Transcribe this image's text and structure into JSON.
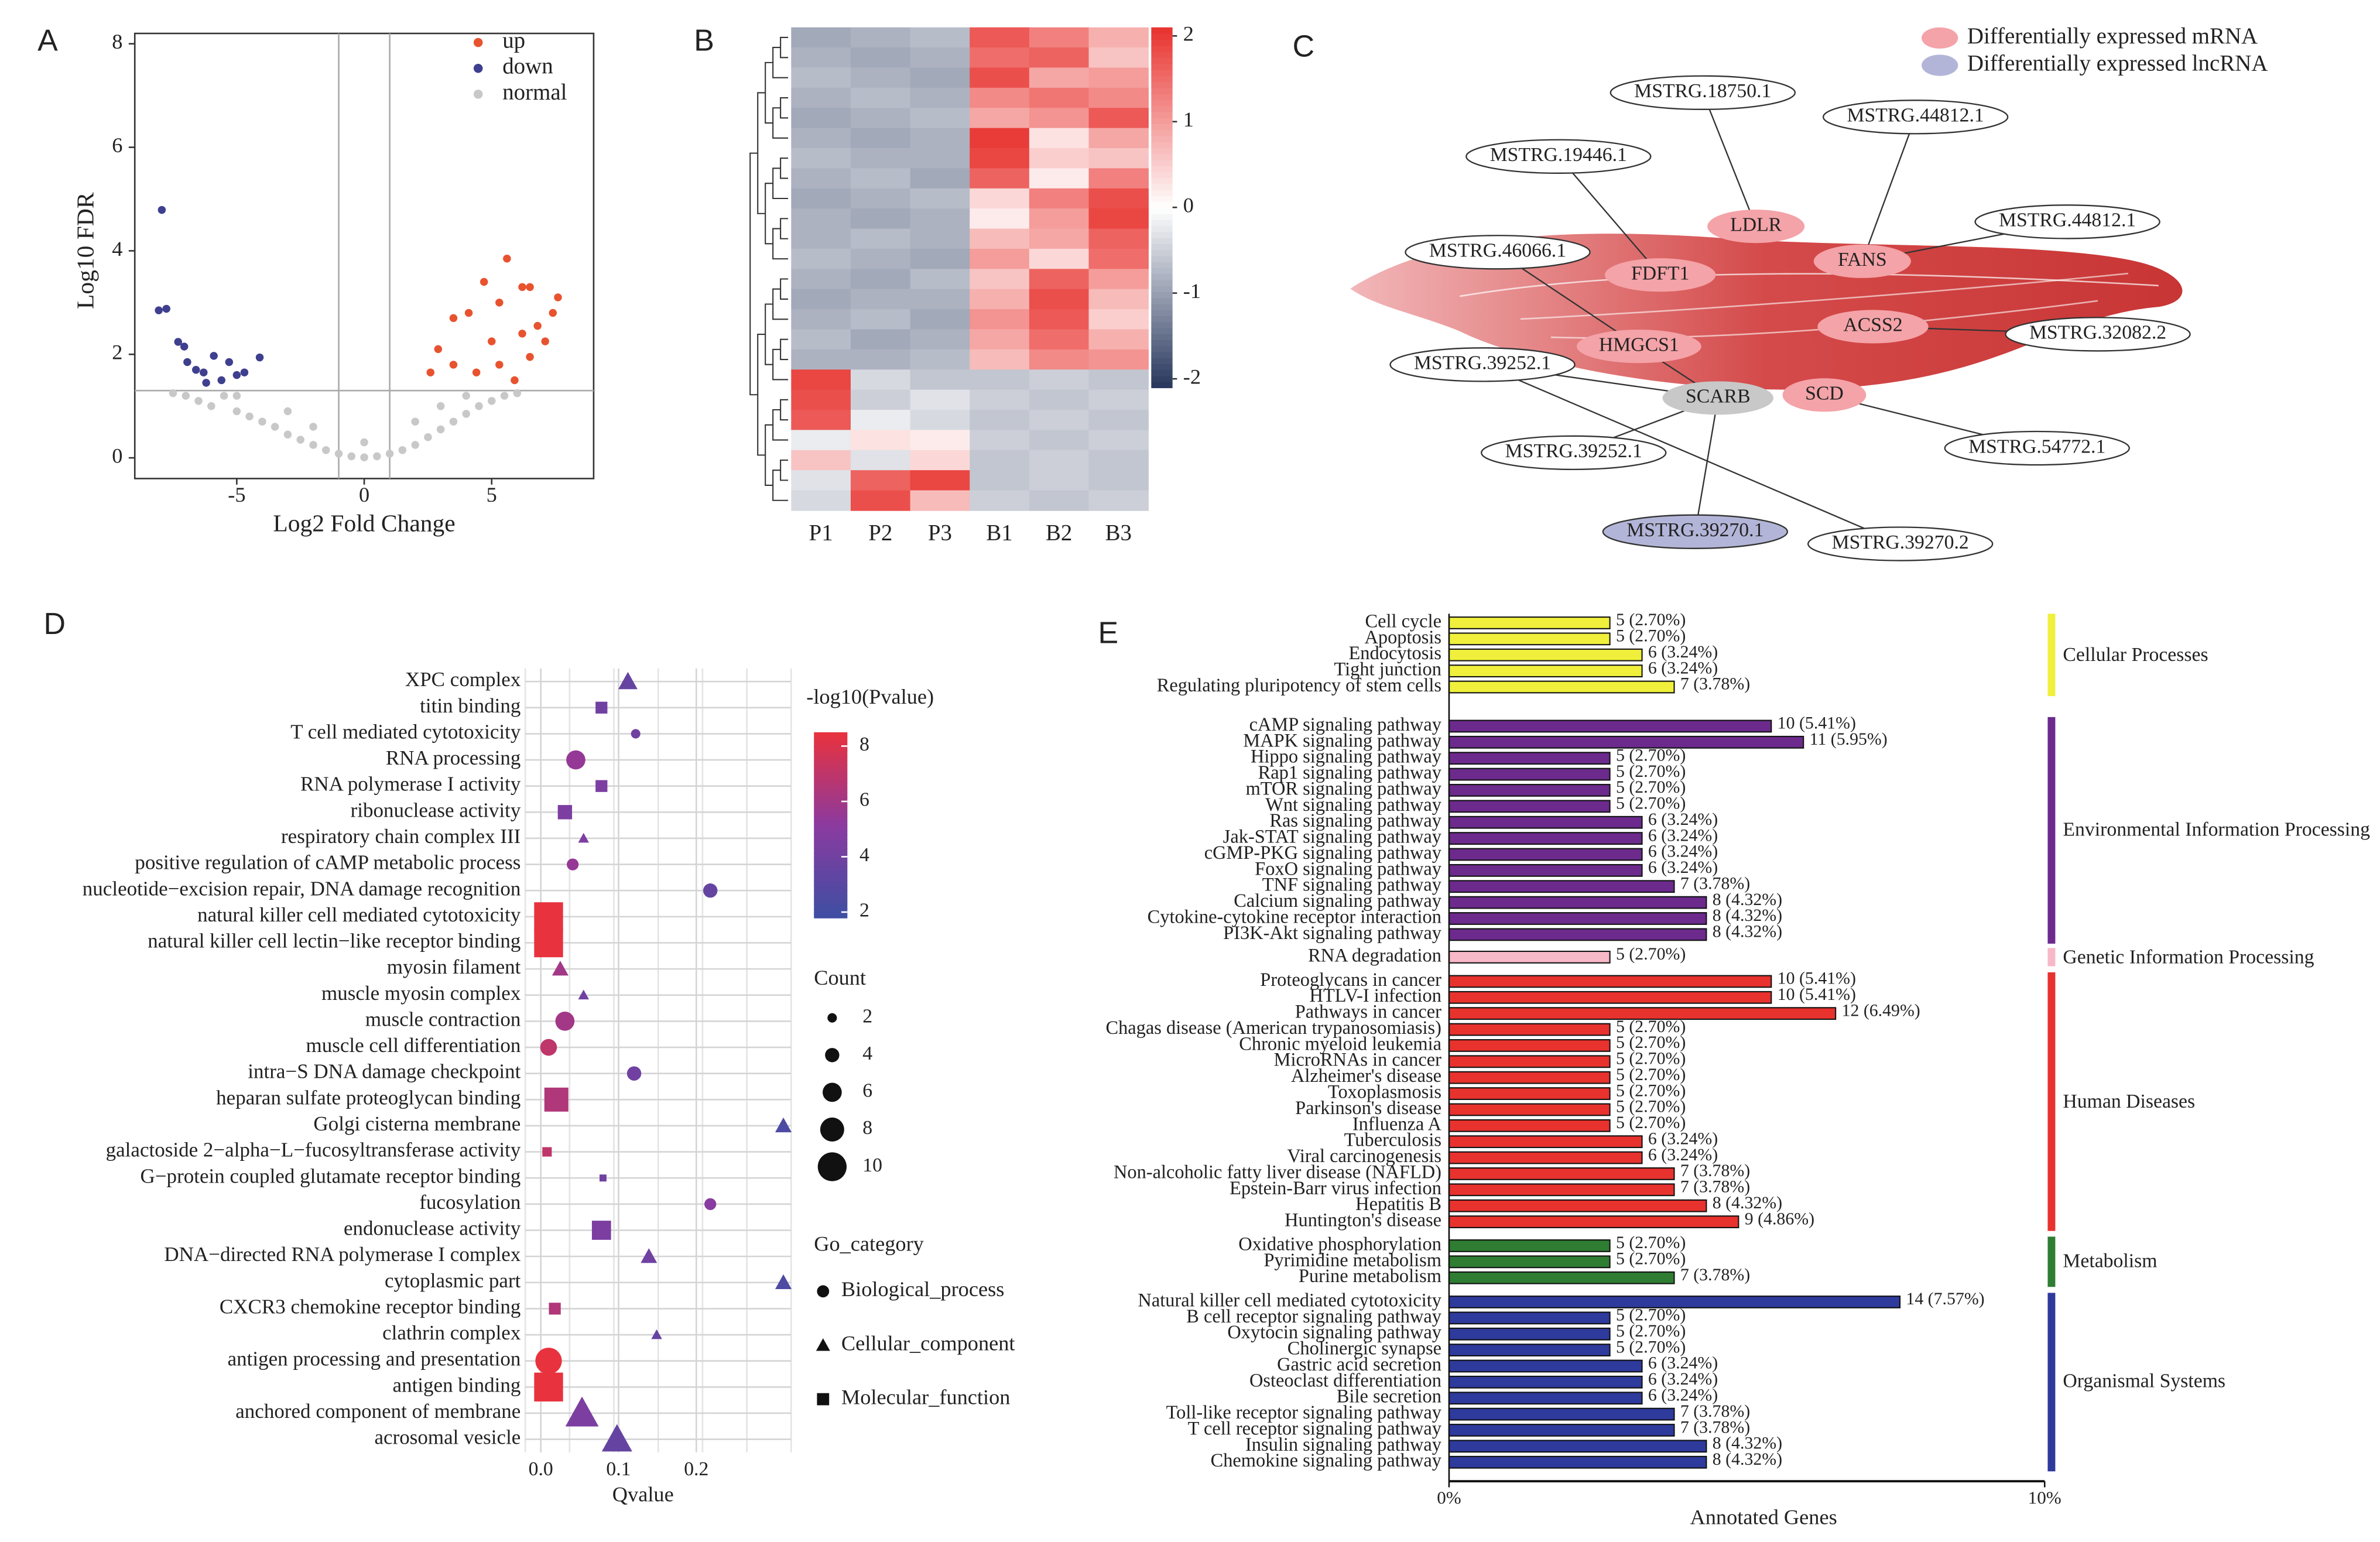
{
  "chart_data": [
    {
      "type": "scatter",
      "panel": "A",
      "xlabel": "Log2 Fold Change",
      "ylabel": "Log10 FDR",
      "xlim": [
        -9,
        9
      ],
      "ylim": [
        -0.4,
        8.2
      ],
      "xticks": [
        -5,
        0,
        5
      ],
      "yticks": [
        0,
        2,
        4,
        6,
        8
      ],
      "vlines": [
        -1,
        1
      ],
      "hlines": [
        1.3
      ],
      "series": [
        {
          "name": "up",
          "color": "#e8532f",
          "x": [
            5.6,
            4.7,
            6.2,
            6.5,
            7.6,
            7.4,
            6.8,
            3.5,
            4.1,
            2.9,
            3.5,
            4.4,
            5.3,
            5.9,
            6.5,
            7.1,
            2.6,
            5.0,
            6.2,
            5.3
          ],
          "values": [
            3.85,
            3.4,
            3.3,
            3.3,
            3.1,
            2.8,
            2.55,
            2.7,
            2.8,
            2.1,
            1.8,
            1.65,
            1.8,
            1.5,
            1.95,
            2.25,
            1.65,
            2.25,
            2.4,
            3.0
          ]
        },
        {
          "name": "down",
          "color": "#3f3f8f",
          "x": [
            -7.94,
            -8.06,
            -7.76,
            -7.3,
            -7.06,
            -6.94,
            -6.6,
            -6.3,
            -5.9,
            -5.3,
            -4.7,
            -4.1,
            -5.0,
            -6.2,
            -5.6
          ],
          "values": [
            4.79,
            2.85,
            2.88,
            2.24,
            2.15,
            1.85,
            1.7,
            1.65,
            1.97,
            1.85,
            1.65,
            1.94,
            1.6,
            1.45,
            1.5
          ]
        },
        {
          "name": "normal",
          "color": "#c8c8c8",
          "x": [
            -7.5,
            -7,
            -6.5,
            -6,
            -5.5,
            -5,
            -4.5,
            -4,
            -3.5,
            -3,
            -2.5,
            -2,
            -1.5,
            -1,
            -0.5,
            0,
            0.5,
            1,
            1.5,
            2,
            2.5,
            3,
            3.5,
            4,
            4.5,
            5,
            5.5,
            6,
            -3,
            3,
            -2,
            2,
            -5,
            4,
            0
          ],
          "values": [
            1.25,
            1.2,
            1.1,
            1.0,
            1.2,
            0.9,
            0.8,
            0.7,
            0.6,
            0.45,
            0.35,
            0.25,
            0.15,
            0.08,
            0.03,
            0.01,
            0.03,
            0.08,
            0.15,
            0.25,
            0.4,
            0.55,
            0.7,
            0.85,
            1.0,
            1.1,
            1.2,
            1.25,
            0.9,
            1.0,
            0.6,
            0.7,
            1.2,
            1.2,
            0.3
          ]
        }
      ]
    },
    {
      "type": "heatmap",
      "panel": "B",
      "columns": [
        "P1",
        "P2",
        "P3",
        "B1",
        "B2",
        "B3"
      ],
      "zlim": [
        -2.1,
        2.1
      ],
      "zticks": [
        -2,
        -1,
        0,
        1,
        2
      ],
      "low_color": "#27365c",
      "mid_color": "#ffffff",
      "high_color": "#e8322e",
      "values": [
        [
          -0.9,
          -0.8,
          -0.7,
          1.7,
          1.3,
          0.8
        ],
        [
          -0.8,
          -0.9,
          -0.8,
          1.5,
          1.6,
          0.6
        ],
        [
          -0.7,
          -0.8,
          -0.9,
          1.8,
          0.9,
          1.0
        ],
        [
          -0.8,
          -0.7,
          -0.8,
          1.2,
          1.4,
          1.2
        ],
        [
          -0.9,
          -0.8,
          -0.7,
          0.9,
          1.1,
          1.7
        ],
        [
          -0.8,
          -0.9,
          -0.8,
          2.0,
          0.3,
          0.9
        ],
        [
          -0.7,
          -0.8,
          -0.8,
          1.9,
          0.5,
          0.6
        ],
        [
          -0.8,
          -0.7,
          -0.9,
          1.6,
          0.2,
          1.3
        ],
        [
          -0.9,
          -0.8,
          -0.7,
          0.4,
          1.3,
          1.8
        ],
        [
          -0.8,
          -0.9,
          -0.8,
          0.2,
          1.0,
          1.9
        ],
        [
          -0.8,
          -0.7,
          -0.8,
          0.7,
          0.9,
          1.6
        ],
        [
          -0.7,
          -0.8,
          -0.9,
          1.0,
          0.4,
          1.5
        ],
        [
          -0.8,
          -0.9,
          -0.7,
          0.6,
          1.6,
          1.0
        ],
        [
          -0.9,
          -0.8,
          -0.8,
          0.8,
          1.8,
          0.7
        ],
        [
          -0.8,
          -0.7,
          -0.9,
          1.1,
          1.7,
          0.5
        ],
        [
          -0.7,
          -0.9,
          -0.8,
          0.9,
          1.5,
          0.8
        ],
        [
          -0.8,
          -0.8,
          -0.7,
          0.7,
          1.2,
          1.1
        ],
        [
          1.9,
          -0.4,
          -0.6,
          -0.6,
          -0.5,
          -0.6
        ],
        [
          1.8,
          -0.5,
          -0.3,
          -0.5,
          -0.6,
          -0.5
        ],
        [
          1.7,
          -0.2,
          -0.4,
          -0.6,
          -0.5,
          -0.6
        ],
        [
          -0.2,
          0.3,
          0.2,
          -0.5,
          -0.6,
          -0.5
        ],
        [
          0.6,
          -0.3,
          0.4,
          -0.6,
          -0.5,
          -0.6
        ],
        [
          -0.3,
          1.6,
          1.9,
          -0.6,
          -0.5,
          -0.6
        ],
        [
          -0.4,
          1.8,
          0.7,
          -0.5,
          -0.6,
          -0.5
        ]
      ]
    },
    {
      "type": "network",
      "panel": "C",
      "legend": [
        {
          "name": "Differentially expressed mRNA",
          "color": "#f4a3a8"
        },
        {
          "name": "Differentially expressed lncRNA",
          "color": "#b3b5d8"
        }
      ],
      "nodes": [
        {
          "label": "LDLR",
          "color": "#f4a3a8"
        },
        {
          "label": "FANS",
          "color": "#f4a3a8"
        },
        {
          "label": "FDFT1",
          "color": "#f4a3a8"
        },
        {
          "label": "HMGCS1",
          "color": "#f4a3a8"
        },
        {
          "label": "ACSS2",
          "color": "#f4a3a8"
        },
        {
          "label": "SCD",
          "color": "#f4a3a8"
        },
        {
          "label": "SCARB",
          "color": "#c8c8c8"
        },
        {
          "label": "MSTRG.18750.1",
          "color": "#ffffff"
        },
        {
          "label": "MSTRG.44812.1",
          "color": "#ffffff"
        },
        {
          "label": "MSTRG.19446.1",
          "color": "#ffffff"
        },
        {
          "label": "MSTRG.44812.1",
          "color": "#ffffff"
        },
        {
          "label": "MSTRG.46066.1",
          "color": "#ffffff"
        },
        {
          "label": "MSTRG.32082.2",
          "color": "#ffffff"
        },
        {
          "label": "MSTRG.39252.1",
          "color": "#ffffff"
        },
        {
          "label": "MSTRG.54772.1",
          "color": "#ffffff"
        },
        {
          "label": "MSTRG.39252.1",
          "color": "#ffffff"
        },
        {
          "label": "MSTRG.39270.1",
          "color": "#b3b5d8"
        },
        {
          "label": "MSTRG.39270.2",
          "color": "#ffffff"
        }
      ]
    },
    {
      "type": "bubble",
      "panel": "D",
      "xlabel": "Qvalue",
      "xlim": [
        -0.02,
        0.322
      ],
      "xticks": [
        {
          "value": 0,
          "label": "0.0"
        },
        {
          "value": 0.1,
          "label": "0.1"
        },
        {
          "value": 0.2,
          "label": "0.2"
        }
      ],
      "color_title": "-log10(Pvalue)",
      "clim": [
        1.8,
        8.5
      ],
      "cticks": [
        2,
        4,
        6,
        8
      ],
      "color_scale": [
        "#3d4fa3",
        "#8b3aa0",
        "#e8323e"
      ],
      "size_title": "Count",
      "size_ticks": [
        2,
        4,
        6,
        8,
        10
      ],
      "shape_title": "Go_category",
      "shapes": [
        {
          "name": "Biological_process",
          "shape": "circle"
        },
        {
          "name": "Cellular_component",
          "shape": "triangle"
        },
        {
          "name": "Molecular_function",
          "shape": "square"
        }
      ],
      "categories": [
        "XPC complex",
        "titin binding",
        "T cell mediated cytotoxicity",
        "RNA processing",
        "RNA polymerase I activity",
        "ribonuclease activity",
        "respiratory chain complex III",
        "positive regulation of cAMP metabolic process",
        "nucleotide−excision repair, DNA damage recognition",
        "natural killer cell mediated cytotoxicity",
        "natural killer cell lectin−like receptor binding",
        "myosin filament",
        "muscle myosin complex",
        "muscle contraction",
        "muscle cell differentiation",
        "intra−S DNA damage checkpoint",
        "heparan sulfate proteoglycan binding",
        "Golgi cisterna membrane",
        "galactoside 2−alpha−L−fucosyltransferase activity",
        "G−protein coupled glutamate receptor binding",
        "fucosylation",
        "endonuclease activity",
        "DNA−directed RNA polymerase I complex",
        "cytoplasmic part",
        "CXCR3 chemokine receptor binding",
        "clathrin complex",
        "antigen processing and presentation",
        "antigen binding",
        "anchored component of membrane",
        "acrosomal vesicle"
      ],
      "values": [
        0.112,
        0.078,
        0.122,
        0.045,
        0.078,
        0.031,
        0.055,
        0.041,
        0.218,
        0.01,
        0.01,
        0.025,
        0.055,
        0.031,
        0.01,
        0.12,
        0.02,
        0.312,
        0.008,
        0.08,
        0.218,
        0.078,
        0.139,
        0.312,
        0.018,
        0.149,
        0.01,
        0.01,
        0.053,
        0.098
      ],
      "color_values": [
        3.5,
        4,
        4,
        5.5,
        4.5,
        4.5,
        4.5,
        5.5,
        3.5,
        8.5,
        8.5,
        6,
        4,
        6,
        7,
        4,
        6.5,
        2.5,
        7,
        4,
        5,
        4.5,
        4,
        2.5,
        6.5,
        3.5,
        8.5,
        8.5,
        4.5,
        3.5
      ],
      "sizes": [
        5,
        3,
        2,
        6,
        3,
        4,
        2,
        3,
        4,
        10,
        10,
        4,
        2,
        6,
        5,
        4,
        8,
        4,
        2,
        1,
        3,
        6,
        4,
        4,
        3,
        2,
        9,
        10,
        10,
        9
      ],
      "groups": [
        "Cellular_component",
        "Molecular_function",
        "Biological_process",
        "Biological_process",
        "Molecular_function",
        "Molecular_function",
        "Cellular_component",
        "Biological_process",
        "Biological_process",
        "Molecular_function",
        "Molecular_function",
        "Cellular_component",
        "Cellular_component",
        "Biological_process",
        "Biological_process",
        "Biological_process",
        "Molecular_function",
        "Cellular_component",
        "Molecular_function",
        "Molecular_function",
        "Biological_process",
        "Molecular_function",
        "Cellular_component",
        "Cellular_component",
        "Molecular_function",
        "Cellular_component",
        "Biological_process",
        "Molecular_function",
        "Cellular_component",
        "Cellular_component"
      ]
    },
    {
      "type": "hbar",
      "panel": "E",
      "xlabel": "Annotated Genes",
      "xlim": [
        0,
        10
      ],
      "xticks": [
        {
          "value": 0,
          "label": "0%"
        },
        {
          "value": 10,
          "label": "10%"
        }
      ],
      "series": [
        {
          "name": "Cellular Processes",
          "color": "#f0f03c",
          "categories": [
            "Cell cycle",
            "Apoptosis",
            "Endocytosis",
            "Tight junction",
            "Regulating pluripotency of stem cells"
          ],
          "values": [
            2.7,
            2.7,
            3.24,
            3.24,
            3.78
          ],
          "value_labels": [
            "5 (2.70%)",
            "5 (2.70%)",
            "6 (3.24%)",
            "6 (3.24%)",
            "7 (3.78%)"
          ]
        },
        {
          "name": "Environmental Information Processing",
          "color": "#6b2a8c",
          "categories": [
            "cAMP signaling pathway",
            "MAPK signaling pathway",
            "Hippo signaling pathway",
            "Rap1 signaling pathway",
            "mTOR signaling pathway",
            "Wnt signaling pathway",
            "Ras signaling pathway",
            "Jak-STAT signaling pathway",
            "cGMP-PKG signaling pathway",
            "FoxO signaling pathway",
            "TNF signaling pathway",
            "Calcium signaling pathway",
            "Cytokine-cytokine receptor interaction",
            "PI3K-Akt signaling pathway"
          ],
          "values": [
            5.41,
            5.95,
            2.7,
            2.7,
            2.7,
            2.7,
            3.24,
            3.24,
            3.24,
            3.24,
            3.78,
            4.32,
            4.32,
            4.32
          ],
          "value_labels": [
            "10 (5.41%)",
            "11 (5.95%)",
            "5 (2.70%)",
            "5 (2.70%)",
            "5 (2.70%)",
            "5 (2.70%)",
            "6 (3.24%)",
            "6 (3.24%)",
            "6 (3.24%)",
            "6 (3.24%)",
            "7 (3.78%)",
            "8 (4.32%)",
            "8 (4.32%)",
            "8 (4.32%)"
          ]
        },
        {
          "name": "Genetic Information Processing",
          "color": "#f7b8c8",
          "categories": [
            "RNA degradation"
          ],
          "values": [
            2.7
          ],
          "value_labels": [
            "5 (2.70%)"
          ]
        },
        {
          "name": "Human Diseases",
          "color": "#e8322e",
          "categories": [
            "Proteoglycans in cancer",
            "HTLV-I infection",
            "Pathways in cancer",
            "Chagas disease (American trypanosomiasis)",
            "Chronic myeloid leukemia",
            "MicroRNAs in cancer",
            "Alzheimer's disease",
            "Toxoplasmosis",
            "Parkinson's disease",
            "Influenza A",
            "Tuberculosis",
            "Viral carcinogenesis",
            "Non-alcoholic fatty liver disease (NAFLD)",
            "Epstein-Barr virus infection",
            "Hepatitis B",
            "Huntington's disease"
          ],
          "values": [
            5.41,
            5.41,
            6.49,
            2.7,
            2.7,
            2.7,
            2.7,
            2.7,
            2.7,
            2.7,
            3.24,
            3.24,
            3.78,
            3.78,
            4.32,
            4.86
          ],
          "value_labels": [
            "10 (5.41%)",
            "10 (5.41%)",
            "12 (6.49%)",
            "5 (2.70%)",
            "5 (2.70%)",
            "5 (2.70%)",
            "5 (2.70%)",
            "5 (2.70%)",
            "5 (2.70%)",
            "5 (2.70%)",
            "6 (3.24%)",
            "6 (3.24%)",
            "7 (3.78%)",
            "7 (3.78%)",
            "8 (4.32%)",
            "9 (4.86%)"
          ]
        },
        {
          "name": "Metabolism",
          "color": "#2e7d32",
          "categories": [
            "Oxidative phosphorylation",
            "Pyrimidine metabolism",
            "Purine metabolism"
          ],
          "values": [
            2.7,
            2.7,
            3.78
          ],
          "value_labels": [
            "5 (2.70%)",
            "5 (2.70%)",
            "7 (3.78%)"
          ]
        },
        {
          "name": "Organismal Systems",
          "color": "#2e3a9c",
          "categories": [
            "Natural killer cell mediated cytotoxicity",
            "B cell receptor signaling pathway",
            "Oxytocin signaling pathway",
            "Cholinergic synapse",
            "Gastric acid secretion",
            "Osteoclast differentiation",
            "Bile secretion",
            "Toll-like receptor signaling pathway",
            "T cell receptor signaling pathway",
            "Insulin signaling pathway",
            "Chemokine signaling pathway"
          ],
          "values": [
            7.57,
            2.7,
            2.7,
            2.7,
            3.24,
            3.24,
            3.24,
            3.78,
            3.78,
            4.32,
            4.32
          ],
          "value_labels": [
            "14 (7.57%)",
            "5 (2.70%)",
            "5 (2.70%)",
            "5 (2.70%)",
            "6 (3.24%)",
            "6 (3.24%)",
            "6 (3.24%)",
            "7 (3.78%)",
            "7 (3.78%)",
            "8 (4.32%)",
            "8 (4.32%)"
          ]
        }
      ]
    }
  ]
}
